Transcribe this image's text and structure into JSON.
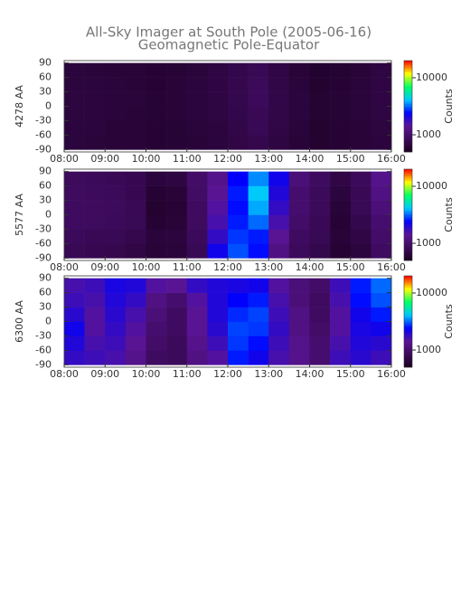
{
  "title": "All-Sky Imager at South Pole (2005-06-16)",
  "subtitle": "Geomagnetic Pole-Equator",
  "chart_data": [
    {
      "type": "heatmap",
      "ylabel": "4278 AA",
      "colorbar_label": "Counts",
      "color_log": true,
      "colormap": [
        "#1a0020",
        "#3c0a5a",
        "#5a1496",
        "#0000ff",
        "#00c8ff",
        "#00ff64",
        "#ffff00",
        "#ff0000"
      ],
      "clim": [
        500,
        20000
      ],
      "cticks": [
        1000,
        10000
      ],
      "xlim": [
        8,
        16
      ],
      "ylim": [
        -95,
        95
      ],
      "xticks": [
        {
          "value": 8,
          "label": "08:00"
        },
        {
          "value": 9,
          "label": "09:00"
        },
        {
          "value": 10,
          "label": "10:00"
        },
        {
          "value": 11,
          "label": "11:00"
        },
        {
          "value": 12,
          "label": "12:00"
        },
        {
          "value": 13,
          "label": "13:00"
        },
        {
          "value": 14,
          "label": "14:00"
        },
        {
          "value": 15,
          "label": "15:00"
        },
        {
          "value": 16,
          "label": "16:00"
        }
      ],
      "yticks": [
        -90,
        -60,
        -30,
        0,
        30,
        60,
        90
      ],
      "x": [
        8.25,
        8.75,
        9.25,
        9.75,
        10.25,
        10.75,
        11.25,
        11.75,
        12.25,
        12.75,
        13.25,
        13.75,
        14.25,
        14.75,
        15.25,
        15.75
      ],
      "y": [
        -75,
        -45,
        -15,
        15,
        45,
        75
      ],
      "values": [
        [
          650,
          640,
          620,
          620,
          600,
          610,
          630,
          650,
          700,
          760,
          680,
          630,
          580,
          600,
          620,
          660
        ],
        [
          660,
          650,
          630,
          630,
          600,
          610,
          640,
          660,
          720,
          800,
          700,
          640,
          580,
          600,
          630,
          670
        ],
        [
          670,
          660,
          640,
          630,
          610,
          620,
          650,
          680,
          740,
          820,
          720,
          650,
          590,
          610,
          640,
          680
        ],
        [
          670,
          660,
          640,
          640,
          610,
          620,
          650,
          680,
          750,
          850,
          730,
          650,
          590,
          610,
          640,
          690
        ],
        [
          660,
          650,
          640,
          630,
          600,
          620,
          650,
          690,
          760,
          840,
          720,
          640,
          580,
          600,
          640,
          690
        ],
        [
          650,
          640,
          630,
          620,
          600,
          610,
          640,
          680,
          740,
          800,
          700,
          630,
          570,
          590,
          630,
          680
        ]
      ]
    },
    {
      "type": "heatmap",
      "ylabel": "5577 AA",
      "colorbar_label": "Counts",
      "color_log": true,
      "colormap": [
        "#1a0020",
        "#3c0a5a",
        "#5a1496",
        "#0000ff",
        "#00c8ff",
        "#00ff64",
        "#ffff00",
        "#ff0000"
      ],
      "clim": [
        500,
        20000
      ],
      "cticks": [
        1000,
        10000
      ],
      "xlim": [
        8,
        16
      ],
      "ylim": [
        -95,
        95
      ],
      "xticks": [
        {
          "value": 8,
          "label": "08:00"
        },
        {
          "value": 9,
          "label": "09:00"
        },
        {
          "value": 10,
          "label": "10:00"
        },
        {
          "value": 11,
          "label": "11:00"
        },
        {
          "value": 12,
          "label": "12:00"
        },
        {
          "value": 13,
          "label": "13:00"
        },
        {
          "value": 14,
          "label": "14:00"
        },
        {
          "value": 15,
          "label": "15:00"
        },
        {
          "value": 16,
          "label": "16:00"
        }
      ],
      "yticks": [
        -90,
        -60,
        -30,
        0,
        30,
        60,
        90
      ],
      "x": [
        8.25,
        8.75,
        9.25,
        9.75,
        10.25,
        10.75,
        11.25,
        11.75,
        12.25,
        12.75,
        13.25,
        13.75,
        14.25,
        14.75,
        15.25,
        15.75
      ],
      "y": [
        -75,
        -45,
        -15,
        15,
        45,
        75
      ],
      "values": [
        [
          800,
          780,
          760,
          700,
          620,
          640,
          800,
          2200,
          3000,
          2500,
          1200,
          850,
          750,
          600,
          650,
          900
        ],
        [
          850,
          820,
          800,
          760,
          640,
          660,
          850,
          1800,
          2800,
          2600,
          1400,
          900,
          800,
          620,
          700,
          950
        ],
        [
          900,
          880,
          850,
          800,
          600,
          620,
          880,
          1600,
          2600,
          3200,
          1600,
          950,
          820,
          600,
          750,
          1000
        ],
        [
          900,
          880,
          860,
          800,
          580,
          600,
          900,
          1500,
          2500,
          3800,
          1800,
          1000,
          850,
          620,
          800,
          1100
        ],
        [
          880,
          860,
          840,
          780,
          600,
          620,
          920,
          1400,
          2600,
          4200,
          2000,
          1000,
          850,
          650,
          820,
          1200
        ],
        [
          860,
          840,
          820,
          780,
          650,
          680,
          950,
          1300,
          2400,
          3500,
          2200,
          1100,
          880,
          700,
          850,
          1300
        ]
      ]
    },
    {
      "type": "heatmap",
      "ylabel": "6300 AA",
      "colorbar_label": "Counts",
      "color_log": true,
      "colormap": [
        "#1a0020",
        "#3c0a5a",
        "#5a1496",
        "#0000ff",
        "#00c8ff",
        "#00ff64",
        "#ffff00",
        "#ff0000"
      ],
      "clim": [
        500,
        20000
      ],
      "cticks": [
        1000,
        10000
      ],
      "xlim": [
        8,
        16
      ],
      "ylim": [
        -95,
        95
      ],
      "xticks": [
        {
          "value": 8,
          "label": "08:00"
        },
        {
          "value": 9,
          "label": "09:00"
        },
        {
          "value": 10,
          "label": "10:00"
        },
        {
          "value": 11,
          "label": "11:00"
        },
        {
          "value": 12,
          "label": "12:00"
        },
        {
          "value": 13,
          "label": "13:00"
        },
        {
          "value": 14,
          "label": "14:00"
        },
        {
          "value": 15,
          "label": "15:00"
        },
        {
          "value": 16,
          "label": "16:00"
        }
      ],
      "yticks": [
        -90,
        -60,
        -30,
        0,
        30,
        60,
        90
      ],
      "x": [
        8.25,
        8.75,
        9.25,
        9.75,
        10.25,
        10.75,
        11.25,
        11.75,
        12.25,
        12.75,
        13.25,
        13.75,
        14.25,
        14.75,
        15.25,
        15.75
      ],
      "y": [
        -75,
        -45,
        -15,
        15,
        45,
        75
      ],
      "values": [
        [
          1800,
          1700,
          1600,
          1300,
          900,
          850,
          1200,
          1500,
          2600,
          2200,
          1600,
          1300,
          1000,
          1700,
          1900,
          1700
        ],
        [
          2000,
          1600,
          1700,
          1400,
          950,
          850,
          1300,
          1700,
          2800,
          2500,
          1700,
          1300,
          1000,
          1600,
          2000,
          1900
        ],
        [
          2200,
          1500,
          1800,
          1500,
          1000,
          900,
          1400,
          1900,
          2900,
          2800,
          1800,
          1200,
          950,
          1500,
          2100,
          2200
        ],
        [
          1900,
          1500,
          1900,
          1600,
          1100,
          900,
          1400,
          2000,
          2700,
          2900,
          1700,
          1200,
          900,
          1500,
          2200,
          2600
        ],
        [
          1700,
          1600,
          2000,
          1800,
          1200,
          1000,
          1500,
          2000,
          2400,
          2600,
          1600,
          1100,
          900,
          1600,
          2500,
          3000
        ],
        [
          1600,
          1700,
          2100,
          2000,
          1500,
          1400,
          1800,
          2000,
          2100,
          2200,
          1500,
          1100,
          950,
          1700,
          2600,
          3200
        ]
      ]
    }
  ]
}
